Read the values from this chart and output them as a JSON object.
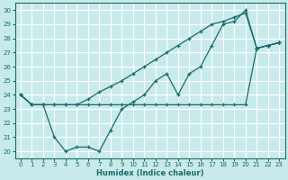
{
  "xlabel": "Humidex (Indice chaleur)",
  "xlim": [
    -0.5,
    23.5
  ],
  "ylim": [
    19.5,
    30.5
  ],
  "xticks": [
    0,
    1,
    2,
    3,
    4,
    5,
    6,
    7,
    8,
    9,
    10,
    11,
    12,
    13,
    14,
    15,
    16,
    17,
    18,
    19,
    20,
    21,
    22,
    23
  ],
  "yticks": [
    20,
    21,
    22,
    23,
    24,
    25,
    26,
    27,
    28,
    29,
    30
  ],
  "background_color": "#c8eaea",
  "grid_color": "#ffffff",
  "line_color": "#1a6b6b",
  "line1_x": [
    0,
    1,
    2,
    3,
    4,
    5,
    6,
    7,
    8,
    9,
    10,
    11,
    12,
    13,
    14,
    15,
    16,
    17,
    18,
    19,
    20,
    21,
    22,
    23
  ],
  "line1_y": [
    24.0,
    23.3,
    23.3,
    23.3,
    23.3,
    23.3,
    23.3,
    23.3,
    23.3,
    23.3,
    23.3,
    23.3,
    23.3,
    23.3,
    23.3,
    23.3,
    23.3,
    23.3,
    23.3,
    23.3,
    23.3,
    27.3,
    27.5,
    27.7
  ],
  "line2_x": [
    0,
    1,
    2,
    3,
    4,
    5,
    6,
    7,
    8,
    9,
    10,
    11,
    12,
    13,
    14,
    15,
    16,
    17,
    18,
    19,
    20,
    21,
    22,
    23
  ],
  "line2_y": [
    24.0,
    23.3,
    23.3,
    21.0,
    20.0,
    20.3,
    20.3,
    20.0,
    21.5,
    23.0,
    23.5,
    24.0,
    25.0,
    25.5,
    24.0,
    25.5,
    26.0,
    27.5,
    29.0,
    29.2,
    30.0,
    27.3,
    27.5,
    27.7
  ],
  "line3_x": [
    0,
    1,
    2,
    3,
    4,
    5,
    6,
    7,
    8,
    9,
    10,
    11,
    12,
    13,
    14,
    15,
    16,
    17,
    18,
    19,
    20,
    21,
    22,
    23
  ],
  "line3_y": [
    24.0,
    23.3,
    23.3,
    23.3,
    23.3,
    23.3,
    23.7,
    24.2,
    24.6,
    25.0,
    25.5,
    26.0,
    26.5,
    27.0,
    27.5,
    28.0,
    28.5,
    29.0,
    29.2,
    29.5,
    29.8,
    27.3,
    27.5,
    27.7
  ]
}
